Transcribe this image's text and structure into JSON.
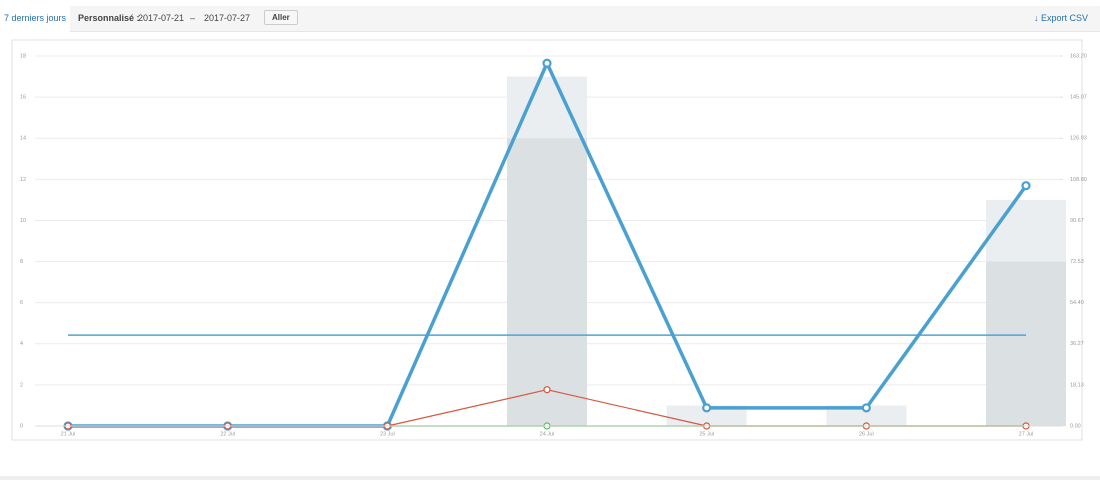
{
  "toolbar": {
    "tab": "7 derniers jours",
    "custom_label": "Personnalisé :",
    "start_date": "2017-07-21",
    "separator": "–",
    "end_date": "2017-07-27",
    "button": "Aller",
    "export": "Export CSV"
  },
  "chart_data": {
    "type": "bar",
    "categories": [
      "21 Jul",
      "22 Jul",
      "23 Jul",
      "24 Jul",
      "25 Jul",
      "26 Jul",
      "27 Jul"
    ],
    "ylim": [
      0,
      18
    ],
    "yticks": [
      0,
      2,
      4,
      6,
      8,
      10,
      12,
      14,
      16,
      18
    ],
    "y2lim": [
      0,
      163.2
    ],
    "y2ticks": [
      {
        "value": 0,
        "label": "0.00"
      },
      {
        "value": 18.13,
        "label": "18.13"
      },
      {
        "value": 36.27,
        "label": "36.27"
      },
      {
        "value": 54.4,
        "label": "54.40"
      },
      {
        "value": 72.53,
        "label": "72.53"
      },
      {
        "value": 90.67,
        "label": "90.67"
      },
      {
        "value": 108.8,
        "label": "108.80"
      },
      {
        "value": 126.93,
        "label": "126.93"
      },
      {
        "value": 145.07,
        "label": "145.07"
      },
      {
        "value": 163.2,
        "label": "163.20"
      }
    ],
    "grid": true,
    "series": [
      {
        "type": "bar",
        "color": "#ebeef0",
        "values": [
          0,
          0,
          0,
          17,
          1,
          1,
          11
        ]
      },
      {
        "type": "bar",
        "color": "#dbe1e3",
        "values": [
          0,
          0,
          0,
          14,
          0,
          0,
          8
        ]
      },
      {
        "type": "line",
        "axis": "y2",
        "color": "#4fa3d4",
        "width": 1.5,
        "markers": false,
        "values": [
          40.1,
          40.1,
          40.1,
          40.1,
          40.1,
          40.1,
          40.1
        ]
      },
      {
        "type": "line",
        "axis": "y2",
        "color": "#5cb85c",
        "width": 1.5,
        "markers": true,
        "values": [
          0,
          0,
          0,
          0,
          0,
          0,
          0
        ]
      },
      {
        "type": "line",
        "axis": "y2",
        "color": "#4ba0d2",
        "width": 3.5,
        "markers": true,
        "values": [
          0,
          0,
          0,
          160,
          8,
          8,
          106
        ]
      },
      {
        "type": "line",
        "axis": "y2",
        "color": "#d6573f",
        "width": 1.2,
        "markers": true,
        "values": [
          0,
          0,
          0,
          16,
          0,
          0,
          0
        ]
      }
    ]
  }
}
